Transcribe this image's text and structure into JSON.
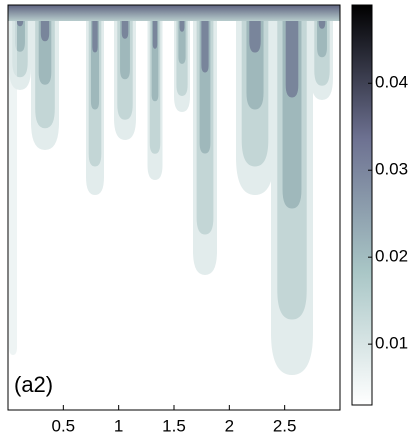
{
  "chart_data": {
    "type": "contour",
    "panel_label": "(a2)",
    "xlim": [
      0,
      3
    ],
    "xticks": [
      0.5,
      1,
      1.5,
      2,
      2.5
    ],
    "colorbar": {
      "lim": [
        0.003,
        0.049
      ],
      "ticks": [
        0.01,
        0.02,
        0.03,
        0.04
      ],
      "colors": [
        "#ffffff",
        "#a9c6c6",
        "#6d7191",
        "#000000"
      ]
    }
  }
}
